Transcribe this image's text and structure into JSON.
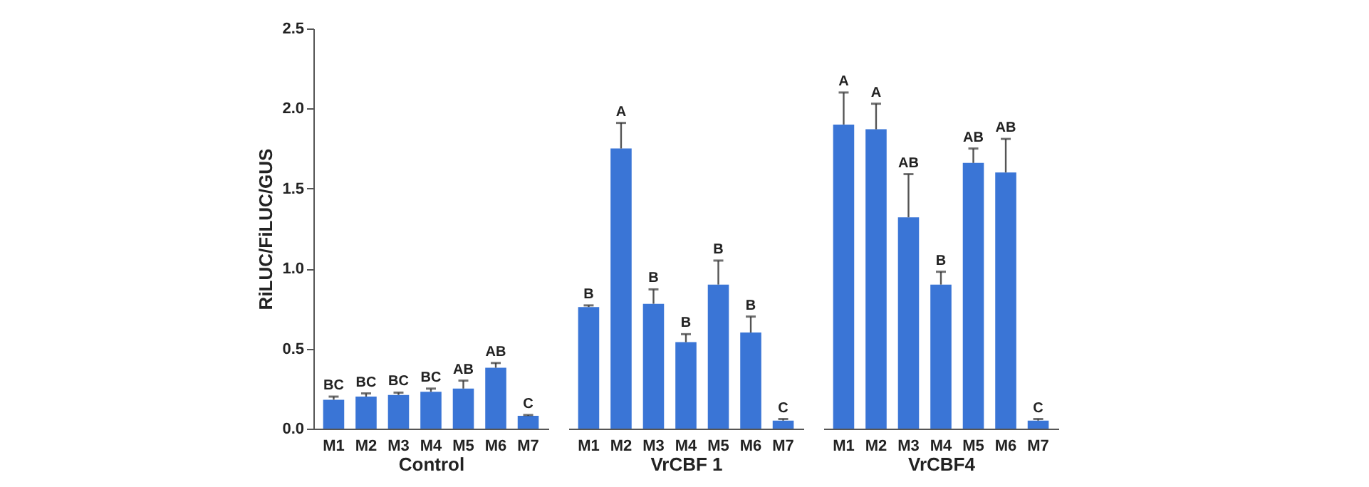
{
  "chart_data": [
    {
      "type": "bar",
      "xlabel": "Control",
      "ylabel": "RiLUC/FiLUC/GUS",
      "categories": [
        "M1",
        "M2",
        "M3",
        "M4",
        "M5",
        "M6",
        "M7"
      ],
      "values": [
        0.18,
        0.2,
        0.21,
        0.23,
        0.25,
        0.38,
        0.08
      ],
      "errors": [
        0.02,
        0.02,
        0.015,
        0.02,
        0.05,
        0.03,
        0.005
      ],
      "color": "#3a75d6",
      "ylim": [
        0,
        2.5
      ],
      "yticks": [
        {
          "value": 0,
          "label": "0.0"
        },
        {
          "value": 0.5,
          "label": "0.5"
        },
        {
          "value": 1,
          "label": "1.0"
        },
        {
          "value": 1.5,
          "label": "1.5"
        },
        {
          "value": 2,
          "label": "2.0"
        },
        {
          "value": 2.5,
          "label": "2.5"
        }
      ],
      "grid": false,
      "annotations": [
        {
          "text": "BC",
          "x": "M1",
          "y": 0.2
        },
        {
          "text": "BC",
          "x": "M2",
          "y": 0.22
        },
        {
          "text": "BC",
          "x": "M3",
          "y": 0.225
        },
        {
          "text": "BC",
          "x": "M4",
          "y": 0.25
        },
        {
          "text": "AB",
          "x": "M5",
          "y": 0.3
        },
        {
          "text": "AB",
          "x": "M6",
          "y": 0.41
        },
        {
          "text": "C",
          "x": "M7",
          "y": 0.085
        }
      ]
    },
    {
      "type": "bar",
      "xlabel": "VrCBF 1",
      "categories": [
        "M1",
        "M2",
        "M3",
        "M4",
        "M5",
        "M6",
        "M7"
      ],
      "values": [
        0.76,
        1.75,
        0.78,
        0.54,
        0.9,
        0.6,
        0.05
      ],
      "errors": [
        0.01,
        0.16,
        0.09,
        0.05,
        0.15,
        0.1,
        0.01
      ],
      "color": "#3a75d6",
      "ylim": [
        0,
        2.5
      ],
      "tick_labels": "x",
      "grid": false,
      "annotations": [
        {
          "text": "B",
          "x": "M1",
          "y": 0.77
        },
        {
          "text": "A",
          "x": "M2",
          "y": 1.91
        },
        {
          "text": "B",
          "x": "M3",
          "y": 0.87
        },
        {
          "text": "B",
          "x": "M4",
          "y": 0.59
        },
        {
          "text": "B",
          "x": "M5",
          "y": 1.05
        },
        {
          "text": "B",
          "x": "M6",
          "y": 0.7
        },
        {
          "text": "C",
          "x": "M7",
          "y": 0.06
        }
      ]
    },
    {
      "type": "bar",
      "xlabel": "VrCBF4",
      "categories": [
        "M1",
        "M2",
        "M3",
        "M4",
        "M5",
        "M6",
        "M7"
      ],
      "values": [
        1.9,
        1.87,
        1.32,
        0.9,
        1.66,
        1.6,
        0.05
      ],
      "errors": [
        0.2,
        0.16,
        0.27,
        0.08,
        0.09,
        0.21,
        0.01
      ],
      "color": "#3a75d6",
      "ylim": [
        0,
        2.5
      ],
      "tick_labels": "x",
      "grid": false,
      "annotations": [
        {
          "text": "A",
          "x": "M1",
          "y": 2.1
        },
        {
          "text": "A",
          "x": "M2",
          "y": 2.03
        },
        {
          "text": "AB",
          "x": "M3",
          "y": 1.59
        },
        {
          "text": "B",
          "x": "M4",
          "y": 0.98
        },
        {
          "text": "AB",
          "x": "M5",
          "y": 1.75
        },
        {
          "text": "AB",
          "x": "M6",
          "y": 1.81
        },
        {
          "text": "C",
          "x": "M7",
          "y": 0.06
        }
      ]
    }
  ]
}
